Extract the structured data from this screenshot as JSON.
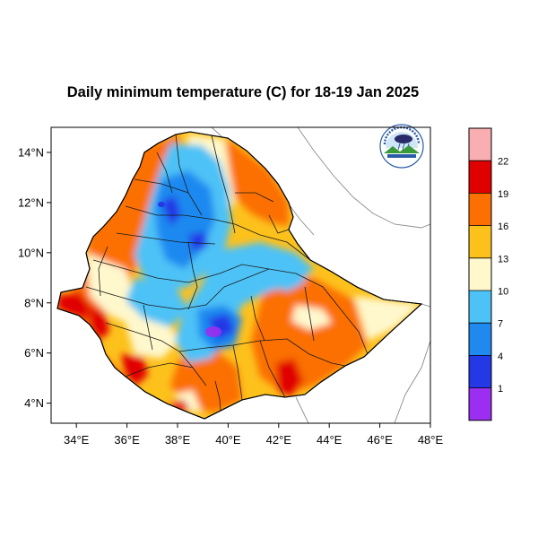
{
  "title": "Daily minimum temperature (C) for 18-19 Jan 2025",
  "map": {
    "lon_range": [
      33,
      48
    ],
    "lat_range": [
      3.2,
      15
    ],
    "lon_ticks": [
      "34°E",
      "36°E",
      "38°E",
      "40°E",
      "42°E",
      "44°E",
      "46°E",
      "48°E"
    ],
    "lon_tick_values": [
      34,
      36,
      38,
      40,
      42,
      44,
      46,
      48
    ],
    "lat_ticks": [
      "14°N",
      "12°N",
      "10°N",
      "8°N",
      "6°N",
      "4°N"
    ],
    "lat_tick_values": [
      14,
      12,
      10,
      8,
      6,
      4
    ],
    "logo_icon": "agency-logo-icon"
  },
  "legend": {
    "labels": [
      "22",
      "19",
      "16",
      "13",
      "10",
      "7",
      "4",
      "1"
    ],
    "colors": [
      "#f9aeb2",
      "#e10000",
      "#fb7000",
      "#fdc11c",
      "#fff8cd",
      "#4dc2f6",
      "#1f89f0",
      "#2438e6",
      "#9b2ef0"
    ]
  }
}
